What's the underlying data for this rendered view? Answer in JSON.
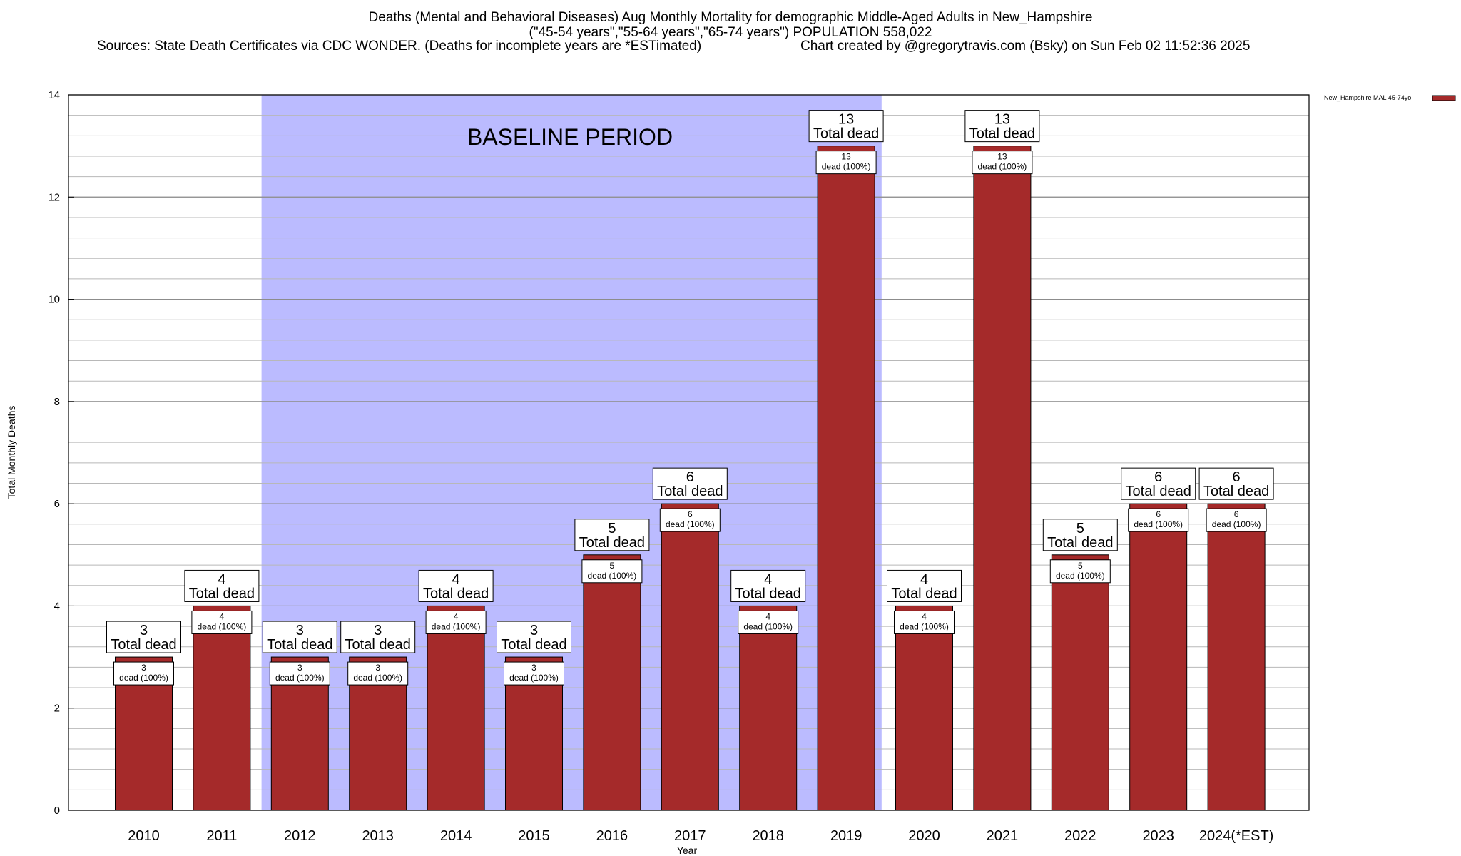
{
  "title": {
    "line1": "Deaths (Mental and Behavioral Diseases) Aug Monthly Mortality for demographic Middle-Aged Adults in New_Hampshire",
    "line2": "(\"45-54 years\",\"55-64 years\",\"65-74 years\") POPULATION 558,022",
    "sources": "Sources: State Death Certificates via CDC WONDER. (Deaths for incomplete years are *ESTimated)",
    "credit": "Chart created by @gregorytravis.com (Bsky) on Sun Feb 02 11:52:36 2025"
  },
  "chart_data": {
    "type": "bar",
    "xlabel": "Year",
    "ylabel": "Total Monthly Deaths",
    "ylim": [
      0,
      14
    ],
    "yticks": [
      0,
      2,
      4,
      6,
      8,
      10,
      12,
      14
    ],
    "grid": true,
    "legend_position": "top-right",
    "categories": [
      "2010",
      "2011",
      "2012",
      "2013",
      "2014",
      "2015",
      "2016",
      "2017",
      "2018",
      "2019",
      "2020",
      "2021",
      "2022",
      "2023",
      "2024(*EST)"
    ],
    "series": [
      {
        "name": "New_Hampshire MAL 45-74yo",
        "color": "#a52a2a",
        "values": [
          3,
          4,
          3,
          3,
          4,
          3,
          5,
          6,
          4,
          13,
          4,
          13,
          5,
          6,
          6
        ]
      }
    ],
    "total_label_suffix": "Total dead",
    "inner_label_suffix": "dead (100%)",
    "baseline": {
      "label": "BASELINE PERIOD",
      "from": "2012",
      "to": "2019",
      "color": "#bbbbff"
    }
  }
}
